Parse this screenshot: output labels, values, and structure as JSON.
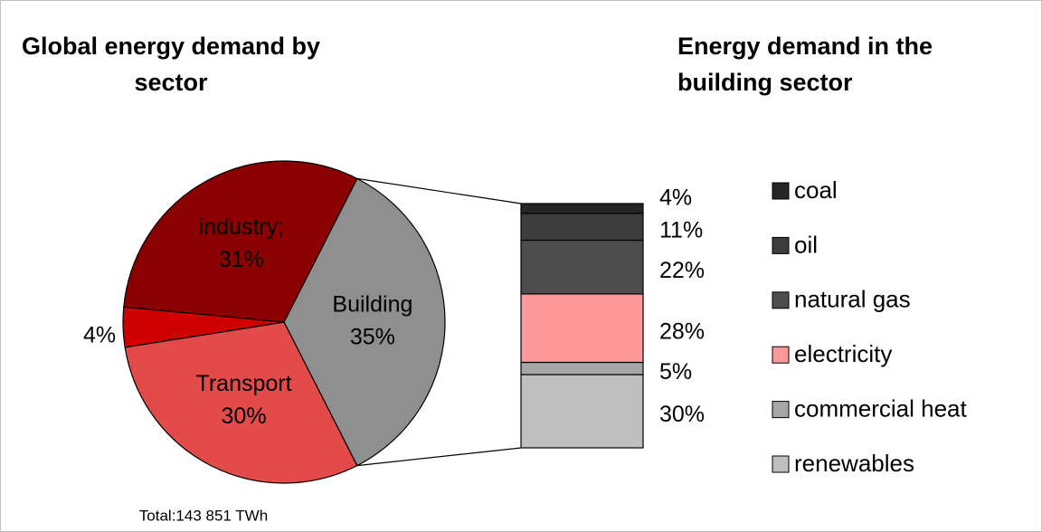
{
  "chart_data": [
    {
      "type": "pie",
      "title": "Global energy demand by sector",
      "annotation": "Total:143 851 TWh",
      "categories": [
        "Building",
        "Transport",
        null,
        "industry;"
      ],
      "values": [
        35,
        30,
        4,
        31
      ],
      "value_labels": [
        "35%",
        "30%",
        "4%",
        "31%"
      ],
      "colors": [
        "#8f8f8f",
        "#e34a4a",
        "#d10000",
        "#8b0000"
      ]
    },
    {
      "type": "bar",
      "title": "Energy demand in the building sector",
      "stacked": true,
      "series": [
        {
          "name": "coal",
          "color": "#262626",
          "values": [
            4
          ],
          "value_labels": [
            "4%"
          ]
        },
        {
          "name": "oil",
          "color": "#3c3c3c",
          "values": [
            11
          ],
          "value_labels": [
            "11%"
          ]
        },
        {
          "name": "natural gas",
          "color": "#4d4d4d",
          "values": [
            22
          ],
          "value_labels": [
            "22%"
          ]
        },
        {
          "name": "electricity",
          "color": "#ff9999",
          "values": [
            28
          ],
          "value_labels": [
            "28%"
          ]
        },
        {
          "name": "commercial heat",
          "color": "#a6a6a6",
          "values": [
            5
          ],
          "value_labels": [
            "5%"
          ]
        },
        {
          "name": "renewables",
          "color": "#bfbfbf",
          "values": [
            30
          ],
          "value_labels": [
            "30%"
          ]
        }
      ]
    }
  ]
}
